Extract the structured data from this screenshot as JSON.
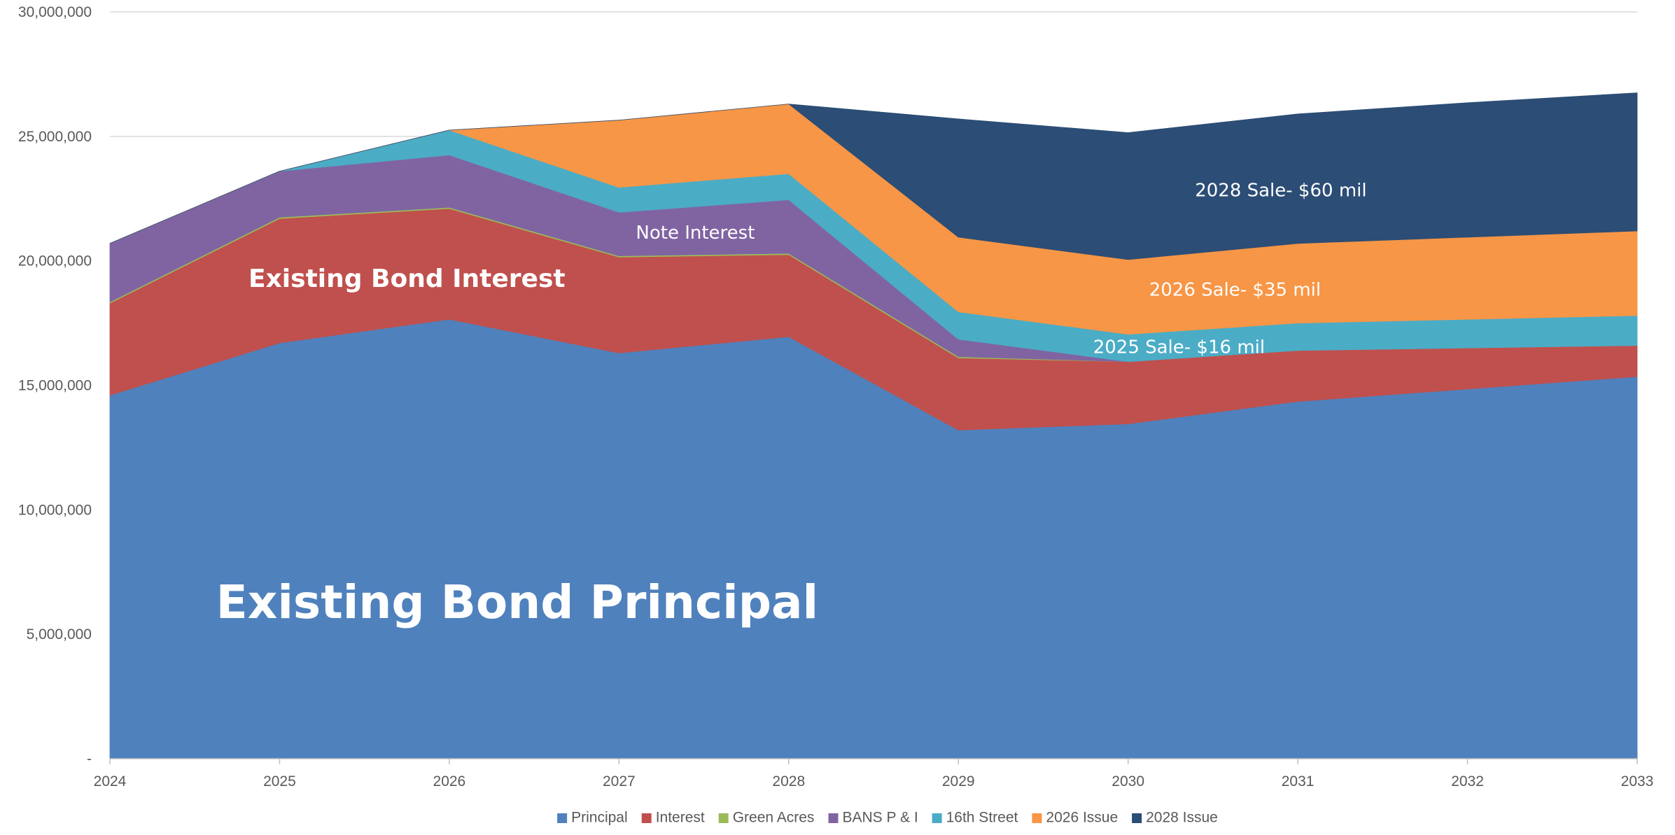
{
  "chart_data": {
    "type": "area",
    "stacked": true,
    "title": "",
    "xlabel": "",
    "ylabel": "",
    "x": [
      "2024",
      "2025",
      "2026",
      "2027",
      "2028",
      "2029",
      "2030",
      "2031",
      "2032",
      "2033"
    ],
    "ylim": [
      0,
      30000000
    ],
    "yticks": [
      0,
      5000000,
      10000000,
      15000000,
      20000000,
      25000000,
      30000000
    ],
    "ytick_labels": [
      "-",
      "5,000,000",
      "10,000,000",
      "15,000,000",
      "20,000,000",
      "25,000,000",
      "30,000,000"
    ],
    "grid": true,
    "legend_position": "bottom",
    "series": [
      {
        "name": "Principal",
        "color": "#4F81BD",
        "values": [
          14600000,
          16700000,
          17650000,
          16300000,
          16950000,
          13200000,
          13450000,
          14350000,
          14850000,
          15350000
        ]
      },
      {
        "name": "Interest",
        "color": "#C0504D",
        "values": [
          3700000,
          5000000,
          4450000,
          3850000,
          3300000,
          2900000,
          2500000,
          2050000,
          1650000,
          1250000
        ]
      },
      {
        "name": "Green Acres",
        "color": "#9BBB59",
        "values": [
          50000,
          50000,
          50000,
          50000,
          50000,
          50000,
          0,
          0,
          0,
          0
        ]
      },
      {
        "name": "BANS P & I",
        "color": "#8064A2",
        "values": [
          2350000,
          1850000,
          2100000,
          1750000,
          2150000,
          700000,
          0,
          0,
          0,
          0
        ]
      },
      {
        "name": "16th Street",
        "color": "#4BACC6",
        "values": [
          0,
          0,
          1000000,
          1000000,
          1050000,
          1100000,
          1100000,
          1100000,
          1150000,
          1200000
        ]
      },
      {
        "name": "2026 Issue",
        "color": "#F79646",
        "values": [
          0,
          0,
          0,
          2700000,
          2800000,
          3000000,
          3000000,
          3200000,
          3300000,
          3400000
        ]
      },
      {
        "name": "2028 Issue",
        "color": "#2C4D75",
        "values": [
          0,
          0,
          0,
          0,
          0,
          4750000,
          5100000,
          5200000,
          5400000,
          5550000
        ]
      }
    ],
    "annotations": [
      {
        "text": "Existing Bond Principal",
        "x": 2026.4,
        "y": 6300000,
        "size": "xl",
        "weight": "bold"
      },
      {
        "text": "Existing Bond Interest",
        "x": 2025.75,
        "y": 19300000,
        "size": "l",
        "weight": "bold"
      },
      {
        "text": "Note Interest",
        "x": 2027.45,
        "y": 21150000,
        "size": "m",
        "weight": "normal"
      },
      {
        "text": "2028 Sale- $60 mil",
        "x": 2030.9,
        "y": 22850000,
        "size": "m",
        "weight": "normal"
      },
      {
        "text": "2026 Sale- $35 mil",
        "x": 2030.63,
        "y": 18850000,
        "size": "m",
        "weight": "normal"
      },
      {
        "text": "2025 Sale- $16 mil",
        "x": 2030.3,
        "y": 16550000,
        "size": "m",
        "weight": "normal"
      }
    ]
  }
}
